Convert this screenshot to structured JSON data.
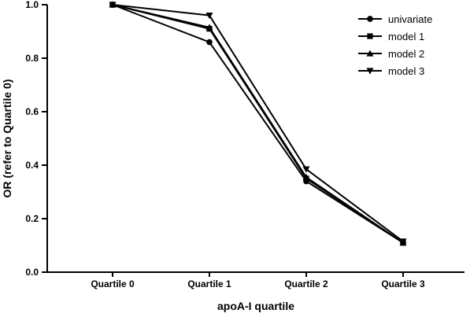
{
  "chart_data": {
    "type": "line",
    "title": "",
    "xlabel": "apoA-I quartile",
    "ylabel": "OR (refer to Quartile 0)",
    "categories": [
      "Quartile 0",
      "Quartile 1",
      "Quartile 2",
      "Quartile 3"
    ],
    "ylim": [
      0,
      1.0
    ],
    "yticks": [
      0.0,
      0.2,
      0.4,
      0.6,
      0.8,
      1.0
    ],
    "ytick_labels": [
      "0.0",
      "0.2",
      "0.4",
      "0.6",
      "0.8",
      "1.0"
    ],
    "grid": false,
    "legend": "top-right",
    "series": [
      {
        "name": "univariate",
        "marker": "circle",
        "values": [
          1.0,
          0.86,
          0.34,
          0.11
        ]
      },
      {
        "name": "model 1",
        "marker": "square",
        "values": [
          1.0,
          0.91,
          0.35,
          0.11
        ]
      },
      {
        "name": "model 2",
        "marker": "triangle-up",
        "values": [
          1.0,
          0.915,
          0.355,
          0.11
        ]
      },
      {
        "name": "model 3",
        "marker": "triangle-down",
        "values": [
          1.0,
          0.96,
          0.385,
          0.115
        ]
      }
    ]
  }
}
